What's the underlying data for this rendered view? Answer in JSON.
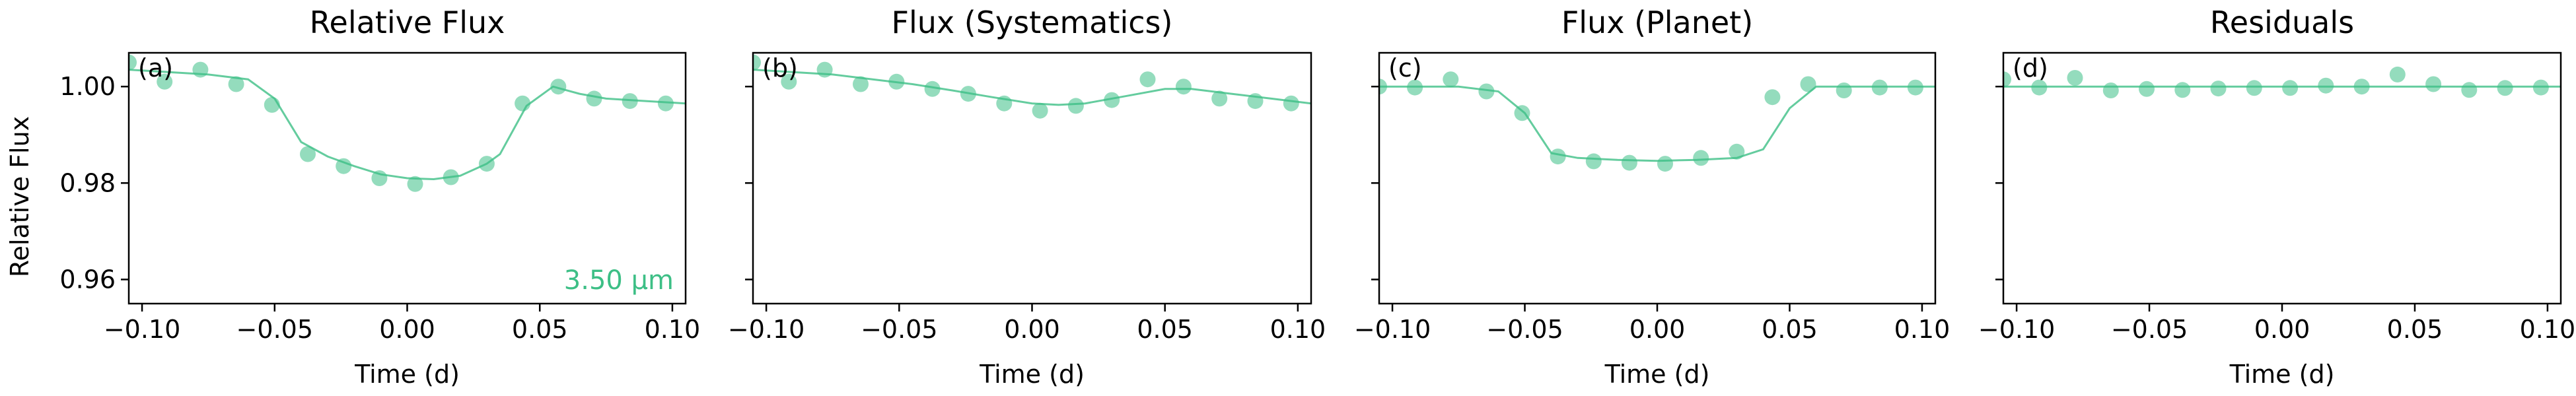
{
  "ylabel": "Relative Flux",
  "annotation": "3.50 μm",
  "colors": {
    "series": "#3dbf86",
    "frame": "#000000",
    "background": "#ffffff"
  },
  "chart_data": [
    {
      "type": "scatter",
      "title": "Relative Flux",
      "panel_label": "(a)",
      "xlabel": "Time (d)",
      "ylabel": "Relative Flux",
      "xlim": [
        -0.105,
        0.105
      ],
      "ylim": [
        0.955,
        1.007
      ],
      "xticks": [
        -0.1,
        -0.05,
        0.0,
        0.05,
        0.1
      ],
      "xtick_labels": [
        "−0.10",
        "−0.05",
        "0.00",
        "0.05",
        "0.10"
      ],
      "yticks": [
        0.96,
        0.98,
        1.0
      ],
      "ytick_labels": [
        "0.96",
        "0.98",
        "1.00"
      ],
      "points": {
        "x": [
          -0.105,
          -0.0915,
          -0.078,
          -0.0645,
          -0.051,
          -0.0375,
          -0.024,
          -0.0105,
          0.003,
          0.0165,
          0.03,
          0.0435,
          0.057,
          0.0705,
          0.084,
          0.0975
        ],
        "y": [
          1.005,
          1.001,
          1.0035,
          1.0005,
          0.9962,
          0.986,
          0.9835,
          0.981,
          0.9798,
          0.9812,
          0.984,
          0.9965,
          1.0,
          0.9975,
          0.997,
          0.9965
        ]
      },
      "model": {
        "x": [
          -0.105,
          -0.09,
          -0.075,
          -0.06,
          -0.05,
          -0.04,
          -0.03,
          -0.02,
          -0.01,
          0.0,
          0.01,
          0.02,
          0.03,
          0.035,
          0.045,
          0.055,
          0.065,
          0.075,
          0.09,
          0.105
        ],
        "y": [
          1.0035,
          1.003,
          1.0025,
          1.0015,
          0.9975,
          0.9885,
          0.9855,
          0.9835,
          0.9818,
          0.981,
          0.9808,
          0.9815,
          0.984,
          0.986,
          0.996,
          1.0,
          0.9985,
          0.9975,
          0.997,
          0.9965
        ]
      }
    },
    {
      "type": "scatter",
      "title": "Flux (Systematics)",
      "panel_label": "(b)",
      "xlabel": "Time (d)",
      "xlim": [
        -0.105,
        0.105
      ],
      "ylim": [
        0.955,
        1.007
      ],
      "xticks": [
        -0.1,
        -0.05,
        0.0,
        0.05,
        0.1
      ],
      "xtick_labels": [
        "−0.10",
        "−0.05",
        "0.00",
        "0.05",
        "0.10"
      ],
      "yticks": [
        0.96,
        0.98,
        1.0
      ],
      "points": {
        "x": [
          -0.105,
          -0.0915,
          -0.078,
          -0.0645,
          -0.051,
          -0.0375,
          -0.024,
          -0.0105,
          0.003,
          0.0165,
          0.03,
          0.0435,
          0.057,
          0.0705,
          0.084,
          0.0975
        ],
        "y": [
          1.005,
          1.001,
          1.0035,
          1.0005,
          1.001,
          0.9995,
          0.9985,
          0.9965,
          0.995,
          0.996,
          0.9972,
          1.0015,
          1.0,
          0.9975,
          0.997,
          0.9965
        ]
      },
      "model": {
        "x": [
          -0.105,
          -0.09,
          -0.075,
          -0.06,
          -0.045,
          -0.03,
          -0.015,
          0.0,
          0.01,
          0.02,
          0.035,
          0.05,
          0.06,
          0.075,
          0.09,
          0.105
        ],
        "y": [
          1.0035,
          1.003,
          1.0025,
          1.0015,
          1.0005,
          0.9992,
          0.9978,
          0.9965,
          0.9962,
          0.9965,
          0.998,
          0.9995,
          0.9995,
          0.9985,
          0.9975,
          0.9965
        ]
      }
    },
    {
      "type": "scatter",
      "title": "Flux (Planet)",
      "panel_label": "(c)",
      "xlabel": "Time (d)",
      "xlim": [
        -0.105,
        0.105
      ],
      "ylim": [
        0.955,
        1.007
      ],
      "xticks": [
        -0.1,
        -0.05,
        0.0,
        0.05,
        0.1
      ],
      "xtick_labels": [
        "−0.10",
        "−0.05",
        "0.00",
        "0.05",
        "0.10"
      ],
      "yticks": [
        0.96,
        0.98,
        1.0
      ],
      "points": {
        "x": [
          -0.105,
          -0.0915,
          -0.078,
          -0.0645,
          -0.051,
          -0.0375,
          -0.024,
          -0.0105,
          0.003,
          0.0165,
          0.03,
          0.0435,
          0.057,
          0.0705,
          0.084,
          0.0975
        ],
        "y": [
          1.0,
          0.9998,
          1.0015,
          0.999,
          0.9945,
          0.9855,
          0.9845,
          0.9842,
          0.984,
          0.9852,
          0.9865,
          0.9978,
          1.0005,
          0.9992,
          0.9998,
          0.9998
        ]
      },
      "model": {
        "x": [
          -0.105,
          -0.09,
          -0.075,
          -0.06,
          -0.05,
          -0.04,
          -0.03,
          -0.015,
          0.0,
          0.015,
          0.03,
          0.04,
          0.05,
          0.06,
          0.075,
          0.09,
          0.105
        ],
        "y": [
          1.0,
          1.0,
          1.0,
          0.999,
          0.9945,
          0.9862,
          0.9852,
          0.9848,
          0.9846,
          0.9848,
          0.9852,
          0.987,
          0.9955,
          1.0,
          1.0,
          1.0,
          1.0
        ]
      }
    },
    {
      "type": "scatter",
      "title": "Residuals",
      "panel_label": "(d)",
      "xlabel": "Time (d)",
      "xlim": [
        -0.105,
        0.105
      ],
      "ylim": [
        0.955,
        1.007
      ],
      "xticks": [
        -0.1,
        -0.05,
        0.0,
        0.05,
        0.1
      ],
      "xtick_labels": [
        "−0.10",
        "−0.05",
        "0.00",
        "0.05",
        "0.10"
      ],
      "yticks": [
        0.96,
        0.98,
        1.0
      ],
      "points": {
        "x": [
          -0.105,
          -0.0915,
          -0.078,
          -0.0645,
          -0.051,
          -0.0375,
          -0.024,
          -0.0105,
          0.003,
          0.0165,
          0.03,
          0.0435,
          0.057,
          0.0705,
          0.084,
          0.0975
        ],
        "y": [
          1.0015,
          0.9998,
          1.0018,
          0.9992,
          0.9995,
          0.9993,
          0.9996,
          0.9997,
          0.9997,
          1.0002,
          1.0,
          1.0025,
          1.0005,
          0.9993,
          0.9997,
          0.9998
        ]
      },
      "model": {
        "x": [
          -0.105,
          0.105
        ],
        "y": [
          1.0,
          1.0
        ]
      }
    }
  ]
}
